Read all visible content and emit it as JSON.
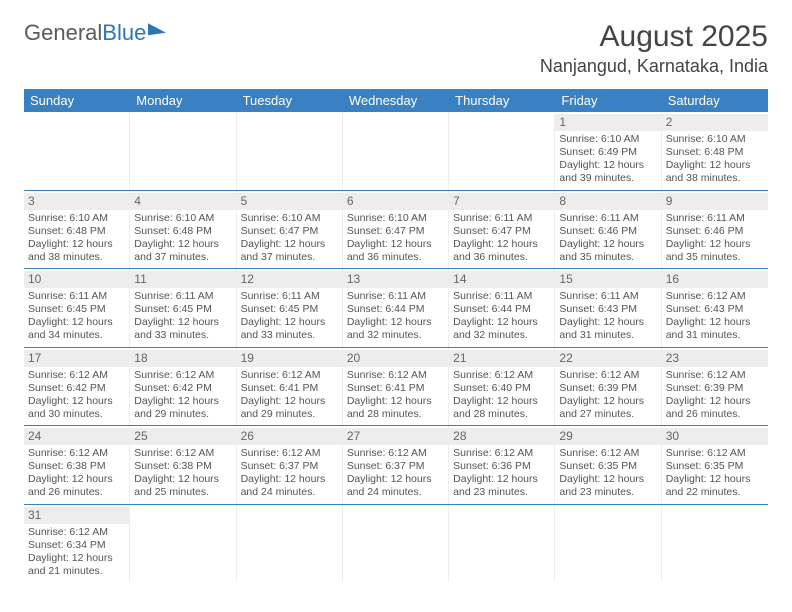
{
  "logo": {
    "part1": "General",
    "part2": "Blue"
  },
  "title": "August 2025",
  "location": "Nanjangud, Karnataka, India",
  "colors": {
    "header_bg": "#3a81c4",
    "header_text": "#ffffff",
    "row_border": "#3a81c4",
    "daynum_bg": "#ededed",
    "text": "#555555"
  },
  "weekdays": [
    "Sunday",
    "Monday",
    "Tuesday",
    "Wednesday",
    "Thursday",
    "Friday",
    "Saturday"
  ],
  "weeks": [
    [
      {
        "empty": true
      },
      {
        "empty": true
      },
      {
        "empty": true
      },
      {
        "empty": true
      },
      {
        "empty": true
      },
      {
        "num": "1",
        "sunrise": "Sunrise: 6:10 AM",
        "sunset": "Sunset: 6:49 PM",
        "day1": "Daylight: 12 hours",
        "day2": "and 39 minutes."
      },
      {
        "num": "2",
        "sunrise": "Sunrise: 6:10 AM",
        "sunset": "Sunset: 6:48 PM",
        "day1": "Daylight: 12 hours",
        "day2": "and 38 minutes."
      }
    ],
    [
      {
        "num": "3",
        "sunrise": "Sunrise: 6:10 AM",
        "sunset": "Sunset: 6:48 PM",
        "day1": "Daylight: 12 hours",
        "day2": "and 38 minutes."
      },
      {
        "num": "4",
        "sunrise": "Sunrise: 6:10 AM",
        "sunset": "Sunset: 6:48 PM",
        "day1": "Daylight: 12 hours",
        "day2": "and 37 minutes."
      },
      {
        "num": "5",
        "sunrise": "Sunrise: 6:10 AM",
        "sunset": "Sunset: 6:47 PM",
        "day1": "Daylight: 12 hours",
        "day2": "and 37 minutes."
      },
      {
        "num": "6",
        "sunrise": "Sunrise: 6:10 AM",
        "sunset": "Sunset: 6:47 PM",
        "day1": "Daylight: 12 hours",
        "day2": "and 36 minutes."
      },
      {
        "num": "7",
        "sunrise": "Sunrise: 6:11 AM",
        "sunset": "Sunset: 6:47 PM",
        "day1": "Daylight: 12 hours",
        "day2": "and 36 minutes."
      },
      {
        "num": "8",
        "sunrise": "Sunrise: 6:11 AM",
        "sunset": "Sunset: 6:46 PM",
        "day1": "Daylight: 12 hours",
        "day2": "and 35 minutes."
      },
      {
        "num": "9",
        "sunrise": "Sunrise: 6:11 AM",
        "sunset": "Sunset: 6:46 PM",
        "day1": "Daylight: 12 hours",
        "day2": "and 35 minutes."
      }
    ],
    [
      {
        "num": "10",
        "sunrise": "Sunrise: 6:11 AM",
        "sunset": "Sunset: 6:45 PM",
        "day1": "Daylight: 12 hours",
        "day2": "and 34 minutes."
      },
      {
        "num": "11",
        "sunrise": "Sunrise: 6:11 AM",
        "sunset": "Sunset: 6:45 PM",
        "day1": "Daylight: 12 hours",
        "day2": "and 33 minutes."
      },
      {
        "num": "12",
        "sunrise": "Sunrise: 6:11 AM",
        "sunset": "Sunset: 6:45 PM",
        "day1": "Daylight: 12 hours",
        "day2": "and 33 minutes."
      },
      {
        "num": "13",
        "sunrise": "Sunrise: 6:11 AM",
        "sunset": "Sunset: 6:44 PM",
        "day1": "Daylight: 12 hours",
        "day2": "and 32 minutes."
      },
      {
        "num": "14",
        "sunrise": "Sunrise: 6:11 AM",
        "sunset": "Sunset: 6:44 PM",
        "day1": "Daylight: 12 hours",
        "day2": "and 32 minutes."
      },
      {
        "num": "15",
        "sunrise": "Sunrise: 6:11 AM",
        "sunset": "Sunset: 6:43 PM",
        "day1": "Daylight: 12 hours",
        "day2": "and 31 minutes."
      },
      {
        "num": "16",
        "sunrise": "Sunrise: 6:12 AM",
        "sunset": "Sunset: 6:43 PM",
        "day1": "Daylight: 12 hours",
        "day2": "and 31 minutes."
      }
    ],
    [
      {
        "num": "17",
        "sunrise": "Sunrise: 6:12 AM",
        "sunset": "Sunset: 6:42 PM",
        "day1": "Daylight: 12 hours",
        "day2": "and 30 minutes."
      },
      {
        "num": "18",
        "sunrise": "Sunrise: 6:12 AM",
        "sunset": "Sunset: 6:42 PM",
        "day1": "Daylight: 12 hours",
        "day2": "and 29 minutes."
      },
      {
        "num": "19",
        "sunrise": "Sunrise: 6:12 AM",
        "sunset": "Sunset: 6:41 PM",
        "day1": "Daylight: 12 hours",
        "day2": "and 29 minutes."
      },
      {
        "num": "20",
        "sunrise": "Sunrise: 6:12 AM",
        "sunset": "Sunset: 6:41 PM",
        "day1": "Daylight: 12 hours",
        "day2": "and 28 minutes."
      },
      {
        "num": "21",
        "sunrise": "Sunrise: 6:12 AM",
        "sunset": "Sunset: 6:40 PM",
        "day1": "Daylight: 12 hours",
        "day2": "and 28 minutes."
      },
      {
        "num": "22",
        "sunrise": "Sunrise: 6:12 AM",
        "sunset": "Sunset: 6:39 PM",
        "day1": "Daylight: 12 hours",
        "day2": "and 27 minutes."
      },
      {
        "num": "23",
        "sunrise": "Sunrise: 6:12 AM",
        "sunset": "Sunset: 6:39 PM",
        "day1": "Daylight: 12 hours",
        "day2": "and 26 minutes."
      }
    ],
    [
      {
        "num": "24",
        "sunrise": "Sunrise: 6:12 AM",
        "sunset": "Sunset: 6:38 PM",
        "day1": "Daylight: 12 hours",
        "day2": "and 26 minutes."
      },
      {
        "num": "25",
        "sunrise": "Sunrise: 6:12 AM",
        "sunset": "Sunset: 6:38 PM",
        "day1": "Daylight: 12 hours",
        "day2": "and 25 minutes."
      },
      {
        "num": "26",
        "sunrise": "Sunrise: 6:12 AM",
        "sunset": "Sunset: 6:37 PM",
        "day1": "Daylight: 12 hours",
        "day2": "and 24 minutes."
      },
      {
        "num": "27",
        "sunrise": "Sunrise: 6:12 AM",
        "sunset": "Sunset: 6:37 PM",
        "day1": "Daylight: 12 hours",
        "day2": "and 24 minutes."
      },
      {
        "num": "28",
        "sunrise": "Sunrise: 6:12 AM",
        "sunset": "Sunset: 6:36 PM",
        "day1": "Daylight: 12 hours",
        "day2": "and 23 minutes."
      },
      {
        "num": "29",
        "sunrise": "Sunrise: 6:12 AM",
        "sunset": "Sunset: 6:35 PM",
        "day1": "Daylight: 12 hours",
        "day2": "and 23 minutes."
      },
      {
        "num": "30",
        "sunrise": "Sunrise: 6:12 AM",
        "sunset": "Sunset: 6:35 PM",
        "day1": "Daylight: 12 hours",
        "day2": "and 22 minutes."
      }
    ],
    [
      {
        "num": "31",
        "sunrise": "Sunrise: 6:12 AM",
        "sunset": "Sunset: 6:34 PM",
        "day1": "Daylight: 12 hours",
        "day2": "and 21 minutes."
      },
      {
        "empty": true
      },
      {
        "empty": true
      },
      {
        "empty": true
      },
      {
        "empty": true
      },
      {
        "empty": true
      },
      {
        "empty": true
      }
    ]
  ]
}
